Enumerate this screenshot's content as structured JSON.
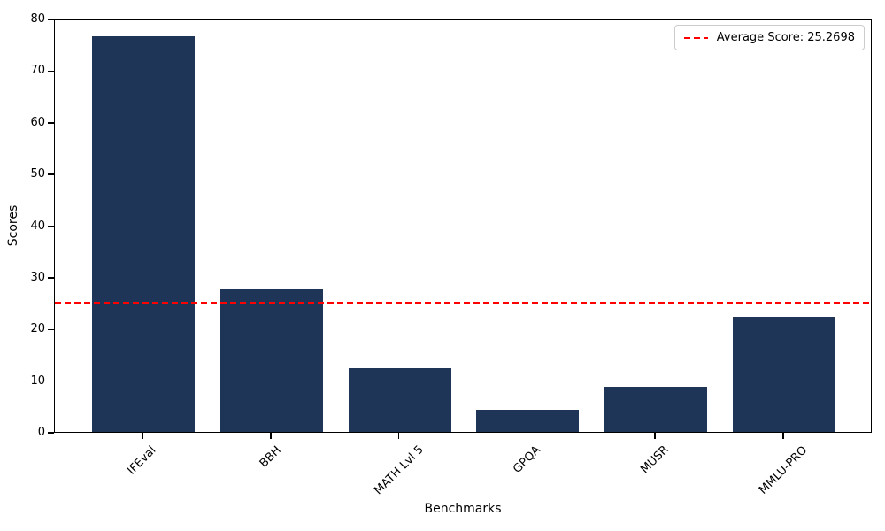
{
  "chart_data": {
    "type": "bar",
    "title": "",
    "xlabel": "Benchmarks",
    "ylabel": "Scores",
    "categories": [
      "IFEval",
      "BBH",
      "MATH Lvl 5",
      "GPQA",
      "MUSR",
      "MMLU-PRO"
    ],
    "values": [
      76.5,
      27.5,
      12.35,
      4.25,
      8.8,
      22.22
    ],
    "ylim": [
      0,
      80
    ],
    "yticks": [
      0,
      10,
      20,
      30,
      40,
      50,
      60,
      70,
      80
    ],
    "bar_color": "#1f3557",
    "grid": false,
    "legend": {
      "position": "upper right",
      "label": "Average Score: 25.2698"
    },
    "average_line": {
      "value": 25.2698,
      "color": "#ff0000",
      "style": "dashed"
    }
  }
}
